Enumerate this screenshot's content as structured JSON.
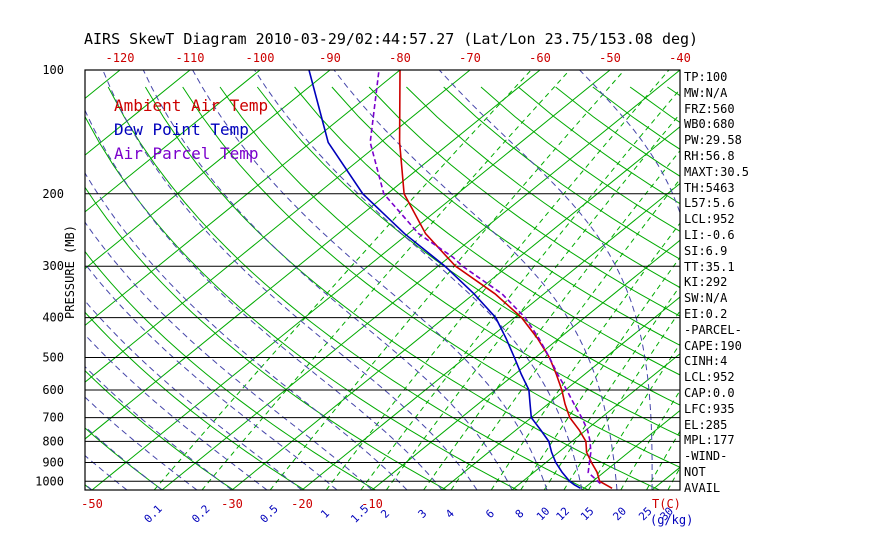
{
  "title": "AIRS SkewT Diagram 2010-03-29/02:44:57.27 (Lat/Lon 23.75/153.08 deg)",
  "colors": {
    "temp": "#cc0000",
    "dewpoint": "#0000bb",
    "parcel": "#7a00cc",
    "isotherm": "#00aa00",
    "dry_adiabat": "#00aa00",
    "mixing_ratio": "#00aa00",
    "moist_adiabat": "#4646aa",
    "axis": "#000000"
  },
  "axes": {
    "pressure_label": "PRESSURE (MB)",
    "pressure_ticks": [
      100,
      200,
      300,
      400,
      500,
      600,
      700,
      800,
      900,
      1000
    ],
    "top_temp_ticks": [
      -120,
      -110,
      -100,
      -90,
      -80,
      -70,
      -60,
      -50,
      -40
    ],
    "bottom_temp_ticks": [
      -50,
      -30,
      -20,
      -10
    ],
    "temp_unit_label": "T(C)",
    "mixing_ratio_unit_label": "(g/kg)",
    "mixing_ratio_ticks": [
      0.1,
      0.2,
      0.5,
      1,
      1.5,
      2,
      3,
      4,
      6,
      8,
      10,
      12,
      15,
      20,
      25,
      30
    ]
  },
  "legend": [
    {
      "label": "Ambient Air Temp",
      "color": "#cc0000"
    },
    {
      "label": "Dew Point Temp",
      "color": "#0000bb"
    },
    {
      "label": "Air Parcel Temp",
      "color": "#7a00cc"
    }
  ],
  "stats": [
    "TP:100",
    "MW:N/A",
    "FRZ:560",
    "WB0:680",
    "PW:29.58",
    "RH:56.8",
    "MAXT:30.5",
    "TH:5463",
    "L57:5.6",
    "LCL:952",
    "LI:-0.6",
    "SI:6.9",
    "TT:35.1",
    "KI:292",
    "SW:N/A",
    "EI:0.2",
    "-PARCEL-",
    "CAPE:190",
    "CINH:4",
    "LCL:952",
    "CAP:0.0",
    "LFC:935",
    "EL:285",
    "MPL:177",
    "-WIND-",
    "NOT",
    "AVAIL"
  ],
  "chart_data": {
    "type": "line",
    "title": "AIRS SkewT Diagram 2010-03-29/02:44:57.27 (Lat/Lon 23.75/153.08 deg)",
    "x_axis_label": "Temperature T(C), skewed 45 deg",
    "y_axis_label": "PRESSURE (MB)",
    "y_scale": "log",
    "pressure_range": [
      100,
      1050
    ],
    "top_axis_temp_range": [
      -120,
      -40
    ],
    "isotherms": {
      "min": -120,
      "max": 40,
      "step": 10
    },
    "dry_adiabats": {
      "min": 220,
      "max": 450,
      "step": 10
    },
    "moist_adiabats": {
      "min": -60,
      "max": 40,
      "step": 5
    },
    "mixing_ratio_lines": [
      0.1,
      0.2,
      0.5,
      1,
      1.5,
      2,
      3,
      4,
      6,
      8,
      10,
      12,
      15,
      20,
      25,
      30
    ],
    "series": [
      {
        "name": "Ambient Air Temp",
        "color": "#cc0000",
        "dash": "",
        "points": [
          [
            1040,
            24
          ],
          [
            1020,
            22.5
          ],
          [
            1000,
            21
          ],
          [
            950,
            19
          ],
          [
            900,
            16.5
          ],
          [
            850,
            14
          ],
          [
            800,
            12
          ],
          [
            750,
            9
          ],
          [
            700,
            5.5
          ],
          [
            650,
            2.5
          ],
          [
            600,
            -0.5
          ],
          [
            550,
            -4
          ],
          [
            500,
            -8
          ],
          [
            450,
            -13
          ],
          [
            400,
            -19
          ],
          [
            350,
            -27
          ],
          [
            300,
            -37.5
          ],
          [
            250,
            -47.5
          ],
          [
            200,
            -57.6
          ],
          [
            150,
            -67.3
          ],
          [
            100,
            -80
          ]
        ]
      },
      {
        "name": "Dew Point Temp",
        "color": "#0000bb",
        "dash": "",
        "points": [
          [
            1040,
            19.5
          ],
          [
            1020,
            18
          ],
          [
            1000,
            16.7
          ],
          [
            950,
            14
          ],
          [
            900,
            11.4
          ],
          [
            850,
            9
          ],
          [
            800,
            6.7
          ],
          [
            750,
            3.5
          ],
          [
            700,
            0
          ],
          [
            650,
            -2.5
          ],
          [
            600,
            -5.2
          ],
          [
            550,
            -9
          ],
          [
            500,
            -13
          ],
          [
            450,
            -17.5
          ],
          [
            400,
            -22.7
          ],
          [
            350,
            -30
          ],
          [
            300,
            -39
          ],
          [
            250,
            -50.5
          ],
          [
            200,
            -63.5
          ],
          [
            150,
            -77.5
          ],
          [
            100,
            -93
          ]
        ]
      },
      {
        "name": "Air Parcel Temp",
        "color": "#7a00cc",
        "dash": "5 3",
        "points": [
          [
            1013,
            21.5
          ],
          [
            952,
            17.8
          ],
          [
            900,
            16.2
          ],
          [
            850,
            14.6
          ],
          [
            800,
            12.6
          ],
          [
            750,
            10.2
          ],
          [
            700,
            7.2
          ],
          [
            650,
            3.8
          ],
          [
            600,
            0.2
          ],
          [
            550,
            -3.8
          ],
          [
            500,
            -8
          ],
          [
            450,
            -12.8
          ],
          [
            400,
            -18.5
          ],
          [
            350,
            -26
          ],
          [
            300,
            -36.5
          ],
          [
            285,
            -39.5
          ],
          [
            250,
            -48.5
          ],
          [
            200,
            -60.5
          ],
          [
            150,
            -71.5
          ],
          [
            100,
            -83
          ]
        ]
      }
    ]
  }
}
